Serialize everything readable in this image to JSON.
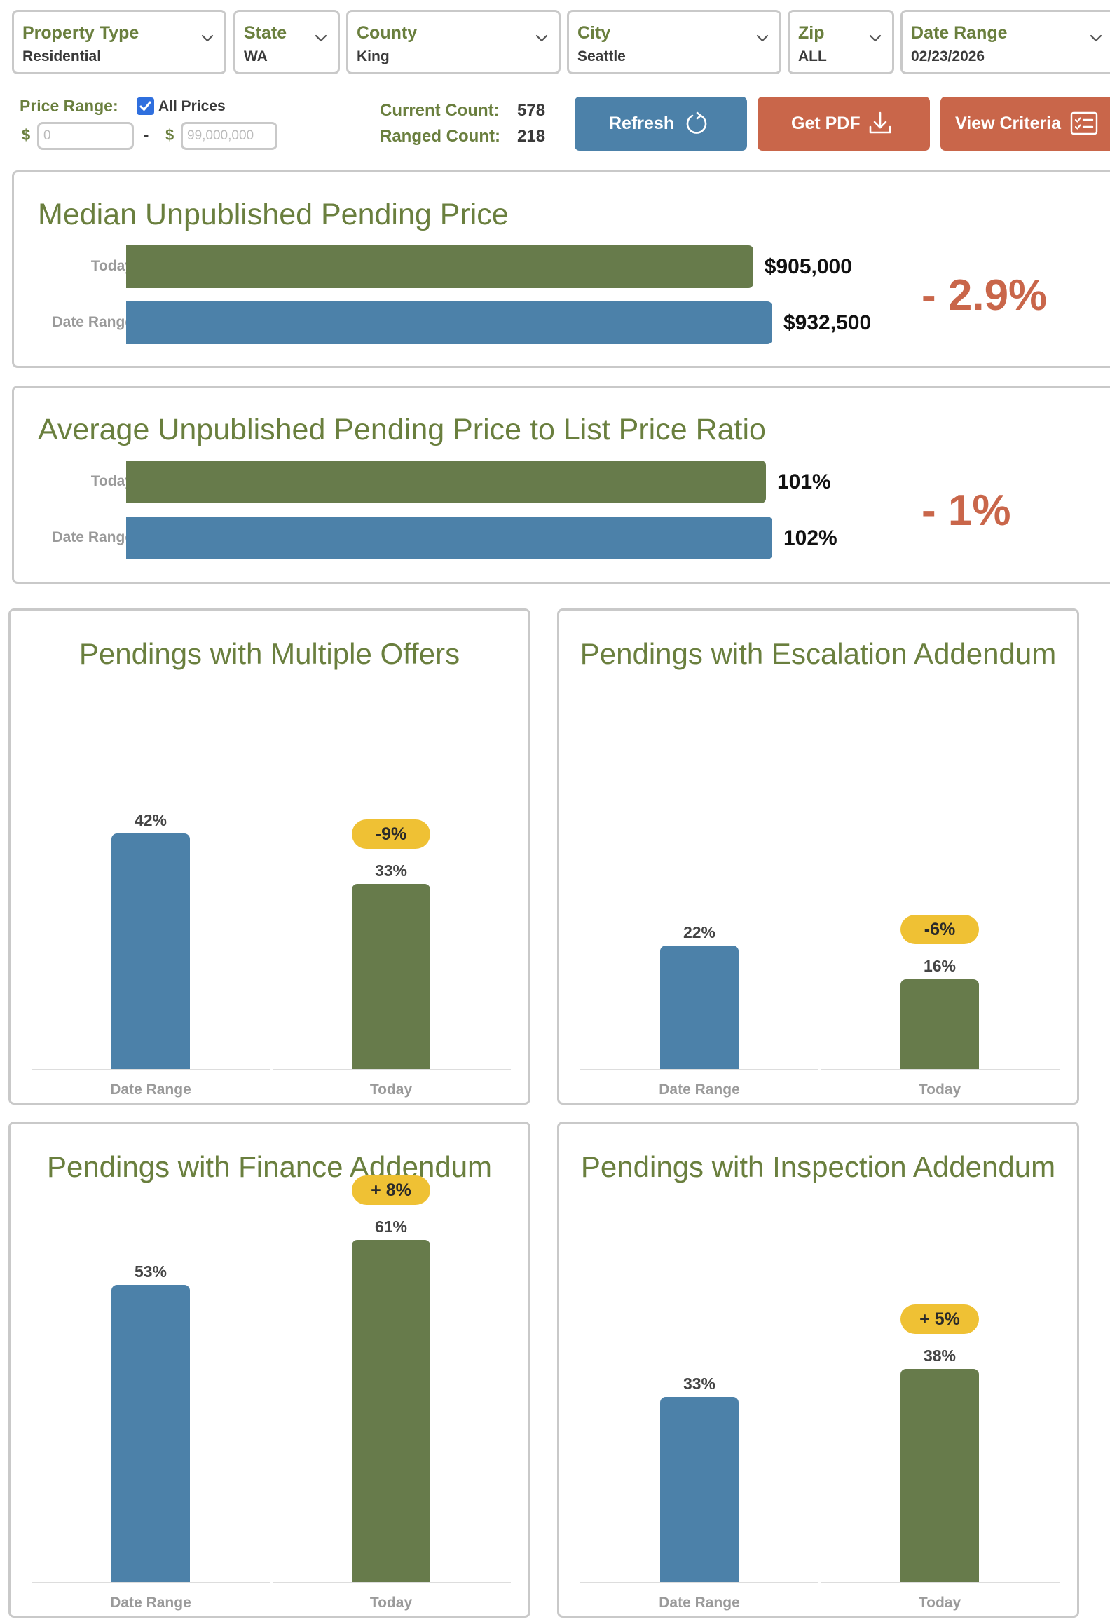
{
  "colors": {
    "accent_green": "#6a7f3e",
    "bar_blue": "#4c81a9",
    "bar_green": "#677b4b",
    "button_blue": "#4c81a9",
    "button_orange": "#c9664a",
    "badge_yellow": "#efc134",
    "delta_red": "#c9664a"
  },
  "filters": {
    "property_type": {
      "label": "Property Type",
      "value": "Residential",
      "icon": "chevron-down-icon"
    },
    "state": {
      "label": "State",
      "value": "WA",
      "icon": "chevron-down-icon"
    },
    "county": {
      "label": "County",
      "value": "King",
      "icon": "chevron-down-icon"
    },
    "city": {
      "label": "City",
      "value": "Seattle",
      "icon": "chevron-down-icon"
    },
    "zip": {
      "label": "Zip",
      "value": "ALL",
      "icon": "chevron-down-icon"
    },
    "date_range": {
      "label": "Date Range",
      "value": "02/23/2026",
      "icon": "chevron-down-icon"
    }
  },
  "price_range": {
    "label": "Price Range:",
    "all_prices_label": "All Prices",
    "all_prices_checked": true,
    "currency": "$",
    "separator": "-",
    "min_value": "",
    "min_placeholder": "0",
    "max_value": "",
    "max_placeholder": "99,000,000"
  },
  "counts": {
    "current_label": "Current Count:",
    "current_value": "578",
    "ranged_label": "Ranged Count:",
    "ranged_value": "218"
  },
  "buttons": {
    "refresh": {
      "label": "Refresh",
      "icon": "refresh-icon"
    },
    "get_pdf": {
      "label": "Get PDF",
      "icon": "download-icon"
    },
    "view_criteria": {
      "label": "View Criteria",
      "icon": "criteria-list-icon"
    }
  },
  "median_price": {
    "title": "Median Unpublished Pending Price",
    "rows": [
      {
        "label": "Today",
        "value": 905000,
        "display": "$905,000"
      },
      {
        "label": "Date Range",
        "value": 932500,
        "display": "$932,500"
      }
    ],
    "change": "- 2.9%"
  },
  "price_ratio": {
    "title": "Average Unpublished Pending Price to List Price Ratio",
    "rows": [
      {
        "label": "Today",
        "value": 101,
        "display": "101%"
      },
      {
        "label": "Date Range",
        "value": 102,
        "display": "102%"
      }
    ],
    "change": "- 1%"
  },
  "chart_data": [
    {
      "type": "bar",
      "title": "Pendings with Multiple Offers",
      "categories": [
        "Date Range",
        "Today"
      ],
      "values": [
        42,
        33
      ],
      "labels": [
        "42%",
        "33%"
      ],
      "change": "-9%",
      "unit": "%"
    },
    {
      "type": "bar",
      "title": "Pendings with Escalation Addendum",
      "categories": [
        "Date Range",
        "Today"
      ],
      "values": [
        22,
        16
      ],
      "labels": [
        "22%",
        "16%"
      ],
      "change": "-6%",
      "unit": "%"
    },
    {
      "type": "bar",
      "title": "Pendings with Finance Addendum",
      "categories": [
        "Date Range",
        "Today"
      ],
      "values": [
        53,
        61
      ],
      "labels": [
        "53%",
        "61%"
      ],
      "change": "+ 8%",
      "unit": "%"
    },
    {
      "type": "bar",
      "title": "Pendings with Inspection Addendum",
      "categories": [
        "Date Range",
        "Today"
      ],
      "values": [
        33,
        38
      ],
      "labels": [
        "33%",
        "38%"
      ],
      "change": "+ 5%",
      "unit": "%"
    }
  ]
}
